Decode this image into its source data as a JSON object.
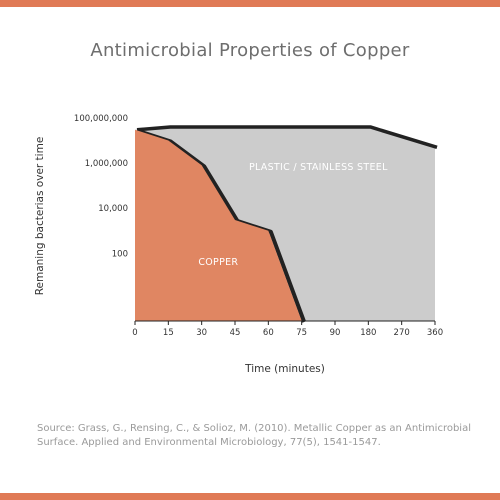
{
  "colors": {
    "frame": "#e07a56",
    "copper": "#e08662",
    "steel": "#cccccc",
    "edge": "#222222",
    "axis": "#222222"
  },
  "source": "Source: Grass, G., Rensing, C., & Solioz, M. (2010). Metallic Copper as an Antimicrobial Surface. Applied and Environmental Microbiology, 77(5), 1541-1547.",
  "chart_data": {
    "type": "area",
    "title": "Antimicrobial Properties of Copper",
    "xlabel": "Time (minutes)",
    "ylabel": "Remaning bacterias over time",
    "x_categories": [
      "0",
      "15",
      "30",
      "45",
      "60",
      "75",
      "90",
      "180",
      "270",
      "360"
    ],
    "y_scale": "log",
    "y_ticks": [
      {
        "value": 100,
        "label": "100"
      },
      {
        "value": 10000,
        "label": "10,000"
      },
      {
        "value": 1000000,
        "label": "1,000,000"
      },
      {
        "value": 100000000,
        "label": "100,000,000"
      }
    ],
    "ylim": [
      0.1,
      100000000
    ],
    "series": [
      {
        "name": "PLASTIC / STAINLESS STEEL",
        "x_index": [
          0,
          1,
          7,
          9
        ],
        "values": [
          30000000,
          40000000,
          40000000,
          5000000
        ]
      },
      {
        "name": "COPPER",
        "x_index": [
          0,
          1,
          2,
          3,
          4,
          5
        ],
        "values": [
          30000000,
          10000000,
          800000,
          3000,
          1000,
          0.1
        ]
      }
    ],
    "annotations": [
      {
        "text": "PLASTIC / STAINLESS STEEL",
        "x_index": 5.5,
        "y": 500000
      },
      {
        "text": "COPPER",
        "x_index": 2.5,
        "y": 30
      }
    ],
    "grid": false,
    "legend": "none"
  }
}
